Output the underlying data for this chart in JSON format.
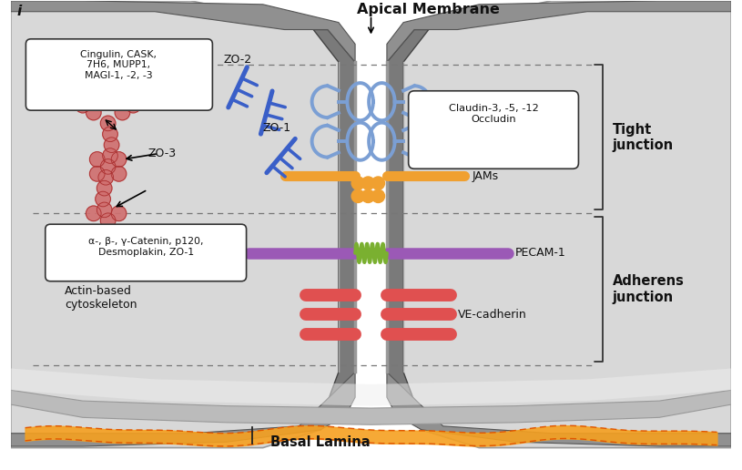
{
  "bg_color": "#ffffff",
  "fig_width": 8.15,
  "fig_height": 5.16,
  "cell_wall_color": "#888888",
  "cell_wall_dark": "#555555",
  "cell_body_color": "#d0d0d0",
  "cell_body_light": "#e8e8e8",
  "apical_label": "Apical Membrane",
  "basal_label": "Basal Lamina",
  "tight_label": "Tight\njunction",
  "adherens_label": "Adherens\njunction",
  "claudin_label": "Claudin-3, -5, -12\nOccludin",
  "jams_label": "JAMs",
  "pecam_label": "PECAM-1",
  "ve_label": "VE-cadherin",
  "zo2_label": "ZO-2",
  "zo1_label": "ZO-1",
  "zo3_label": "ZO-3",
  "cingulin_label": "Cingulin, CASK,\n7H6, MUPP1,\nMAGI-1, -2, -3",
  "actin_label": "Actin-based\ncytoskeleton",
  "catenin_label": "α-, β-, γ-Catenin, p120,\nDesmoplakin, ZO-1",
  "claudin_color": "#7b9fd4",
  "jams_color": "#f0a030",
  "pecam_color": "#9b59b6",
  "ve_color": "#e05050",
  "zo_color": "#3a5fc8",
  "actin_color": "#d07070",
  "spring_color": "#7ab030"
}
